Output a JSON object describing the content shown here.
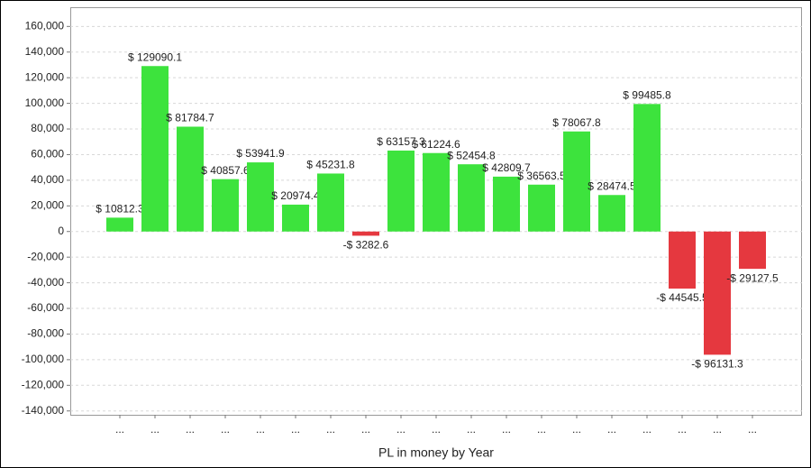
{
  "chart_data": {
    "type": "bar",
    "x_label": "PL in money by Year",
    "categories": [
      "...",
      "...",
      "...",
      "...",
      "...",
      "...",
      "...",
      "...",
      "...",
      "...",
      "...",
      "...",
      "...",
      "...",
      "...",
      "...",
      "...",
      "...",
      "..."
    ],
    "values": [
      10812.3,
      129090.1,
      81784.7,
      40857.6,
      53941.9,
      20974.4,
      45231.8,
      -3282.6,
      63157.3,
      61224.6,
      52454.8,
      42809.7,
      36563.5,
      78067.8,
      28474.5,
      99485.8,
      -44545.5,
      -96131.3,
      -29127.5
    ],
    "value_labels": [
      "$ 10812.3",
      "$ 129090.1",
      "$ 81784.7",
      "$ 40857.6",
      "$ 53941.9",
      "$ 20974.4",
      "$ 45231.8",
      "-$ 3282.6",
      "$ 63157.3",
      "$ 61224.6",
      "$ 52454.8",
      "$ 42809.7",
      "$ 36563.5",
      "$ 78067.8",
      "$ 28474.5",
      "$ 99485.8",
      "-$ 44545.5",
      "-$ 96131.3",
      "-$ 29127.5"
    ],
    "positive_color": "#3de33d",
    "negative_color": "#e5383f",
    "ylim": [
      -143000,
      175000
    ],
    "yticks": [
      {
        "value": -140000,
        "label": "-140,000"
      },
      {
        "value": -120000,
        "label": "-120,000"
      },
      {
        "value": -100000,
        "label": "-100,000"
      },
      {
        "value": -80000,
        "label": "-80,000"
      },
      {
        "value": -60000,
        "label": "-60,000"
      },
      {
        "value": -40000,
        "label": "-40,000"
      },
      {
        "value": -20000,
        "label": "-20,000"
      },
      0,
      {
        "value": 20000,
        "label": "20,000"
      },
      {
        "value": 40000,
        "label": "40,000"
      },
      {
        "value": 60000,
        "label": "60,000"
      },
      {
        "value": 80000,
        "label": "80,000"
      },
      {
        "value": 100000,
        "label": "100,000"
      },
      {
        "value": 120000,
        "label": "120,000"
      },
      {
        "value": 140000,
        "label": "140,000"
      },
      {
        "value": 160000,
        "label": "160,000"
      }
    ],
    "grid": true
  }
}
